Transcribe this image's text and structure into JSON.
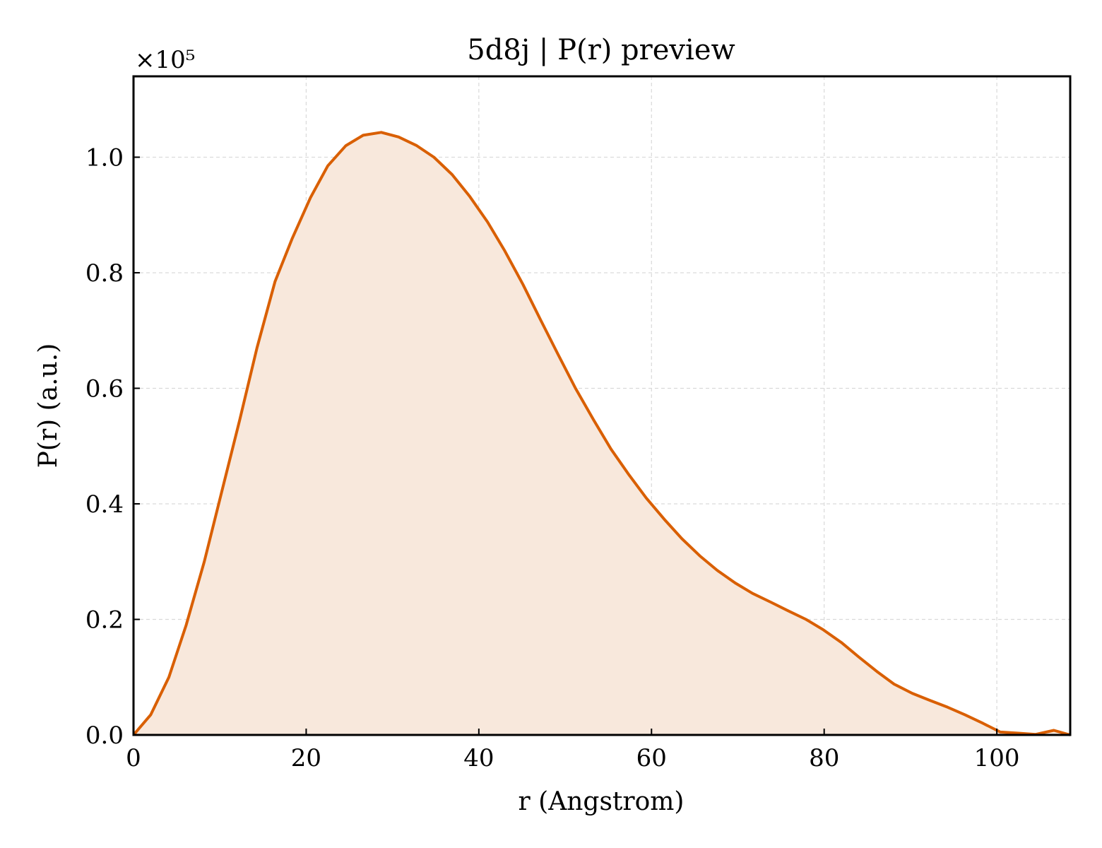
{
  "chart_data": {
    "type": "area",
    "title": "5d8j | P(r) preview",
    "xlabel": "r (Angstrom)",
    "ylabel": "P(r) (a.u.)",
    "y_multiplier_label": "×10⁵",
    "xlim": [
      0,
      108.5
    ],
    "ylim": [
      0,
      1.14
    ],
    "xticks": [
      0,
      20,
      40,
      60,
      80,
      100
    ],
    "xtick_labels": [
      "0",
      "20",
      "40",
      "60",
      "80",
      "100"
    ],
    "yticks": [
      0.0,
      0.2,
      0.4,
      0.6,
      0.8,
      1.0
    ],
    "ytick_labels": [
      "0.0",
      "0.2",
      "0.4",
      "0.6",
      "0.8",
      "1.0"
    ],
    "grid": true,
    "line_color": "#d95f02",
    "fill_color": "#f8e8dc",
    "series": [
      {
        "x": [
          0,
          2.0,
          4.1,
          6.1,
          8.2,
          10.2,
          12.3,
          14.3,
          16.4,
          18.4,
          20.5,
          22.5,
          24.6,
          26.6,
          28.7,
          30.7,
          32.8,
          34.8,
          36.9,
          38.9,
          41.0,
          43.0,
          45.1,
          47.1,
          49.2,
          51.2,
          53.3,
          55.3,
          57.4,
          59.4,
          61.5,
          63.5,
          65.6,
          67.6,
          69.7,
          71.7,
          73.8,
          75.8,
          77.9,
          79.9,
          82.0,
          84.0,
          86.1,
          88.1,
          90.2,
          92.2,
          94.3,
          96.3,
          98.4,
          100.4,
          102.5,
          104.5,
          106.6,
          108.5
        ],
        "y": [
          0.0,
          0.035,
          0.1,
          0.19,
          0.3,
          0.42,
          0.545,
          0.67,
          0.785,
          0.86,
          0.93,
          0.985,
          1.02,
          1.038,
          1.043,
          1.035,
          1.02,
          1.0,
          0.97,
          0.933,
          0.888,
          0.838,
          0.78,
          0.72,
          0.658,
          0.6,
          0.545,
          0.495,
          0.45,
          0.41,
          0.373,
          0.34,
          0.31,
          0.285,
          0.263,
          0.245,
          0.23,
          0.215,
          0.2,
          0.182,
          0.16,
          0.135,
          0.11,
          0.088,
          0.072,
          0.06,
          0.048,
          0.035,
          0.02,
          0.005,
          0.003,
          0.001,
          0.008,
          0.0
        ]
      }
    ]
  }
}
